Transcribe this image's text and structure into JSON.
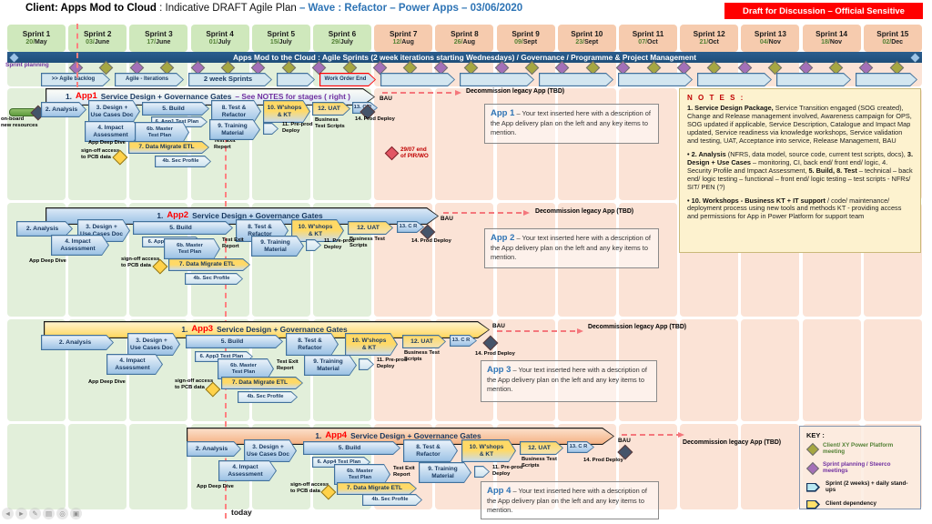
{
  "header": {
    "title_client": "Client: Apps Mod to Cloud",
    "title_mid": " : Indicative DRAFT Agile Plan ",
    "title_accent": "– Wave : Refactor – Power Apps – 03/06/2020",
    "classification": "Draft for Discussion – Official Sensitive"
  },
  "banner": {
    "text": "Apps Mod to the Cloud : Agile Sprints (2 week iterations starting Wednesdays) / Governance / Programme & Project Management"
  },
  "sprints": [
    {
      "name": "Sprint 1",
      "date_num": "20/",
      "month": "May",
      "phase": "green"
    },
    {
      "name": "Sprint 2",
      "date_num": "03/",
      "month": "June",
      "phase": "green"
    },
    {
      "name": "Sprint 3",
      "date_num": "17/",
      "month": "June",
      "phase": "green"
    },
    {
      "name": "Sprint 4",
      "date_num": "01/",
      "month": "July",
      "phase": "green"
    },
    {
      "name": "Sprint 5",
      "date_num": "15/",
      "month": "July",
      "phase": "green"
    },
    {
      "name": "Sprint 6",
      "date_num": "29/",
      "month": "July",
      "phase": "green"
    },
    {
      "name": "Sprint 7",
      "date_num": "12/",
      "month": "Aug",
      "phase": "peach"
    },
    {
      "name": "Sprint 8",
      "date_num": "26/",
      "month": "Aug",
      "phase": "peach"
    },
    {
      "name": "Sprint 9",
      "date_num": "09/",
      "month": "Sept",
      "phase": "peach"
    },
    {
      "name": "Sprint 10",
      "date_num": "23/",
      "month": "Sept",
      "phase": "peach"
    },
    {
      "name": "Sprint 11",
      "date_num": "07/",
      "month": "Oct",
      "phase": "peach"
    },
    {
      "name": "Sprint 12",
      "date_num": "21/",
      "month": "Oct",
      "phase": "peach"
    },
    {
      "name": "Sprint 13",
      "date_num": "04/",
      "month": "Nov",
      "phase": "peach"
    },
    {
      "name": "Sprint 14",
      "date_num": "18/",
      "month": "Nov",
      "phase": "peach"
    },
    {
      "name": "Sprint 15",
      "date_num": "02/",
      "month": "Dec",
      "phase": "peach"
    }
  ],
  "planning": {
    "label": "Sprint planning"
  },
  "backlog_row": [
    {
      "label": ">> Agile backlog",
      "variant": "normal"
    },
    {
      "label": "Agile - Iterations",
      "variant": "normal"
    },
    {
      "label": "2 week Sprints",
      "variant": "emph"
    },
    {
      "label": "",
      "variant": "normal"
    },
    {
      "label": "Work Order End",
      "variant": "alert"
    },
    {
      "label": "",
      "variant": "normal"
    },
    {
      "label": "",
      "variant": "normal"
    },
    {
      "label": "",
      "variant": "normal"
    },
    {
      "label": "",
      "variant": "normal"
    },
    {
      "label": "",
      "variant": "normal"
    },
    {
      "label": "",
      "variant": "normal"
    },
    {
      "label": "",
      "variant": "normal"
    }
  ],
  "today_label": "today",
  "lanes": [
    {
      "name": "App1",
      "arrow_num": "1.",
      "arrow_text": "Service Design + Governance Gates",
      "arrow_suffix": "– See NOTES for stages ( right )",
      "onboard": "on-board\nnew resources",
      "pir": "29/07 end\nof PIR/WO",
      "labels": {
        "analysis": "2. Analysis",
        "design": "3. Design +\nUse Cases Doc",
        "build": "5. Build",
        "testplan": "6. App1 Test Plan",
        "tnr": "8. Test &\nRefactor",
        "wshops": "10. W'shops\n& KT",
        "uat": "12. UAT",
        "bts": "Business\nTest Scripts",
        "cr": "13. C R",
        "bau": "BAU",
        "decom": "Decommission legacy App (TBD)",
        "prod": "14. Prod Deploy",
        "impact": "4. Impact\nAssessment",
        "appdeep": "App Deep Dive",
        "mastertp": "6b. Master\nTest Plan",
        "testexit": "Test Exit\nReport",
        "training": "9. Training\nMaterial",
        "preprod": "11. Pre-prod\nDeploy",
        "signoff": "sign-off access\nto PCB data",
        "datamig": "7. Data Migrate ETL",
        "secprof": "4b. Sec Profile",
        "smallchev": ""
      },
      "desc": {
        "title": "App 1",
        "text": " – Your text inserted here with a description of the App delivery plan on the left and any key items to mention."
      }
    },
    {
      "name": "App2",
      "arrow_num": "1.",
      "arrow_text": "Service Design + Governance Gates",
      "arrow_suffix": "",
      "labels": {
        "analysis": "2. Analysis",
        "design": "3. Design +\nUse Cases Doc",
        "build": "5. Build",
        "testplan": "6. App2 Test Plan",
        "tnr": "8. Test &\nRefactor",
        "wshops": "10. W'shops\n& KT",
        "uat": "12. UAT",
        "bts": "Business Test Scripts",
        "cr": "13. C R",
        "bau": "BAU",
        "decom": "Decommission legacy App (TBD)",
        "prod": "14. Prod Deploy",
        "impact": "4. Impact\nAssessment",
        "appdeep": "App Deep Dive",
        "mastertp": "6b. Master\nTest Plan",
        "testexit": "Test Exit\nReport",
        "training": "9. Training\nMaterial",
        "preprod": "11. Pre-prod\nDeploy",
        "signoff": "sign-off access\nto PCB data",
        "datamig": "7. Data Migrate ETL",
        "secprof": "4b. Sec Profile",
        "smallchev": ""
      },
      "desc": {
        "title": "App 2",
        "text": " – Your text inserted here with a description of the App delivery plan on the left and any key items to mention."
      }
    },
    {
      "name": "App3",
      "arrow_num": "1.",
      "arrow_text": "Service Design + Governance Gates",
      "arrow_suffix": "",
      "labels": {
        "analysis": "2. Analysis",
        "design": "3. Design +\nUse Cases Doc",
        "build": "5. Build",
        "testplan": "6. App3 Test Plan",
        "tnr": "8. Test &\nRefactor",
        "wshops": "10. W'shops\n& KT",
        "uat": "12. UAT",
        "bts": "Business Test Scripts",
        "cr": "13. C R",
        "bau": "BAU",
        "decom": "Decommission legacy App (TBD)",
        "prod": "14. Prod Deploy",
        "impact": "4. Impact\nAssessment",
        "appdeep": "App Deep Dive",
        "mastertp": "6b. Master\nTest Plan",
        "testexit": "Test Exit\nReport",
        "training": "9. Training\nMaterial",
        "preprod": "11. Pre-prod\nDeploy",
        "signoff": "sign-off access\nto PCB data",
        "datamig": "7. Data Migrate ETL",
        "secprof": "4b. Sec Profile",
        "smallchev": ""
      },
      "desc": {
        "title": "App 3",
        "text": " – Your text inserted here with a description of the App delivery plan on the left and any key items to mention."
      }
    },
    {
      "name": "App4",
      "arrow_num": "1.",
      "arrow_text": "Service Design + Governance Gates",
      "arrow_suffix": "",
      "labels": {
        "analysis": "2. Analysis",
        "design": "3. Design +\nUse Cases Doc",
        "build": "5. Build",
        "testplan": "6. App4 Test Plan",
        "tnr": "8. Test &\nRefactor",
        "wshops": "10. W'shops\n& KT",
        "uat": "12. UAT",
        "bts": "Business Test Scripts",
        "cr": "13. C R",
        "bau": "BAU",
        "decom": "Decommission legacy App (TBD)",
        "prod": "14. Prod Deploy",
        "impact": "4. Impact\nAssessment",
        "appdeep": "App Deep Dive",
        "mastertp": "6b. Master\nTest Plan",
        "testexit": "Test Exit\nReport",
        "training": "9. Training\nMaterial",
        "preprod": "11. Pre-prod\nDeploy",
        "signoff": "sign-off access\nto PCB data",
        "datamig": "7. Data Migrate ETL",
        "secprof": "4b. Sec Profile",
        "smallchev": ""
      },
      "desc": {
        "title": "App 4",
        "text": " – Your text inserted here with a description of the App delivery plan on the left and any key items to mention."
      }
    }
  ],
  "notes": {
    "title": "N O T E S :",
    "paragraphs": [
      [
        {
          "t": "1. Service Design Package,",
          "b": true
        },
        {
          "t": " Service Transition engaged (SOG created), Change and Release management involved, Awareness campaign for OPS, SOG updated if applicable, Service Description, Catalogue and Impact Map updated, Service readiness via knowledge workshops, Service validation and testing, UAT, Acceptance into service, Release Management, BAU",
          "b": false
        }
      ],
      [
        {
          "t": "• 2. Analysis",
          "b": true
        },
        {
          "t": " (NFRS, data model, source code, current test scripts, docs), ",
          "b": false
        },
        {
          "t": "3. Design + Use Cases",
          "b": true
        },
        {
          "t": " – monitoring, CI, back end/ front end/ logic, 4. Security Profile and Impact Assessment, ",
          "b": false
        },
        {
          "t": "5. Build, 8. Test",
          "b": true
        },
        {
          "t": " – technical – back end/ logic testing – functional – front end/ logic testing – test scripts - NFRs/ SIT/ PEN (?)",
          "b": false
        }
      ],
      [
        {
          "t": "• 10. Workshops - Business KT + IT support",
          "b": true
        },
        {
          "t": " / code/ maintenance/ deployment process using new tools and methods KT - providing access and permissions for App in Power Platform for support team",
          "b": false
        }
      ]
    ]
  },
  "key": {
    "title": "KEY :",
    "items": [
      {
        "icon": "diamond-olive",
        "icon_color": "#a6a742",
        "text_color": "#538135",
        "label": "Client/ XY Power Platform meeting"
      },
      {
        "icon": "diamond-purple",
        "icon_color": "#a470b8",
        "text_color": "#7030a0",
        "label": "Sprint planning / Steerco meetings"
      },
      {
        "icon": "chevron-cyan",
        "icon_color": "#b9e8f2",
        "text_color": "#111111",
        "label": "Sprint (2 weeks) + daily stand-ups"
      },
      {
        "icon": "chevron-yellow",
        "icon_color": "#ffe06a",
        "text_color": "#111111",
        "label": "Client dependency"
      }
    ]
  },
  "colors": {
    "green_header": "#cfe8bc",
    "green_stripe": "#e2efda",
    "peach_header": "#f6cbae",
    "peach_stripe": "#fbe3d6",
    "banner_blue": "#1f4e79",
    "accent_blue": "#2e74b5",
    "alert_red": "#ff0000",
    "gold": "#ffd966",
    "slate_diamond": "#44546a"
  },
  "viewer_toolbar": {
    "icons": [
      {
        "name": "previous",
        "glyph": "◄"
      },
      {
        "name": "next",
        "glyph": "►"
      },
      {
        "name": "edit",
        "glyph": "✎"
      },
      {
        "name": "gallery",
        "glyph": "▤"
      },
      {
        "name": "zoom",
        "glyph": "◎"
      },
      {
        "name": "print",
        "glyph": "▣"
      }
    ]
  }
}
